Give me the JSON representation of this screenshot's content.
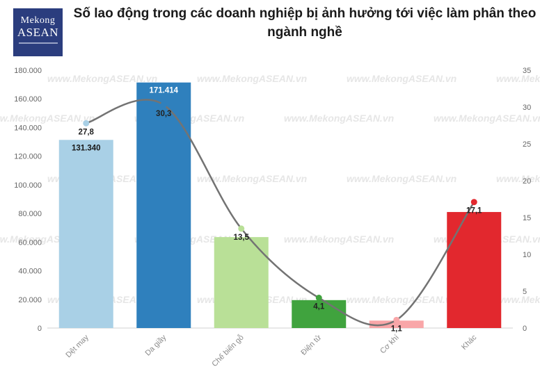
{
  "brand": {
    "line1": "Mekong",
    "line2": "ASEAN",
    "bg": "#2b3d7e"
  },
  "chart_data": {
    "type": "bar",
    "title": "Số lao động trong các doanh nghiệp bị ảnh hưởng tới việc làm phân theo ngành nghề",
    "watermark": "www.MekongASEAN.vn",
    "categories": [
      "Dệt may",
      "Da giầy",
      "Chế biến gỗ",
      "Điện tử",
      "Cơ khí",
      "Khác"
    ],
    "bar_labels": [
      "131.340",
      "171.414",
      "",
      "",
      "",
      ""
    ],
    "line_labels": [
      "27,8",
      "30,3",
      "13,5",
      "4,1",
      "1,1",
      "17,1"
    ],
    "series": [
      {
        "type": "bar",
        "axis": "left",
        "values": [
          131340,
          171414,
          63500,
          19500,
          5200,
          81000
        ],
        "colors": [
          "#a9d0e6",
          "#2f80bd",
          "#b9e097",
          "#40a33e",
          "#f9a6a8",
          "#e2282e"
        ]
      },
      {
        "type": "line",
        "axis": "right",
        "values": [
          27.8,
          30.3,
          13.5,
          4.1,
          1.1,
          17.1
        ],
        "color": "#737373",
        "marker_colors": [
          "#a9d0e6",
          "#2f80bd",
          "#b9e097",
          "#40a33e",
          "#f9a6a8",
          "#e2282e"
        ]
      }
    ],
    "y_left": {
      "min": 0,
      "max": 180000,
      "step": 20000,
      "ticks": [
        "0",
        "20.000",
        "40.000",
        "60.000",
        "80.000",
        "100.000",
        "120.000",
        "140.000",
        "160.000",
        "180.000"
      ]
    },
    "y_right": {
      "min": 0,
      "max": 35,
      "step": 5,
      "ticks": [
        "0",
        "5",
        "10",
        "15",
        "20",
        "25",
        "30",
        "35"
      ]
    },
    "grid": false
  }
}
